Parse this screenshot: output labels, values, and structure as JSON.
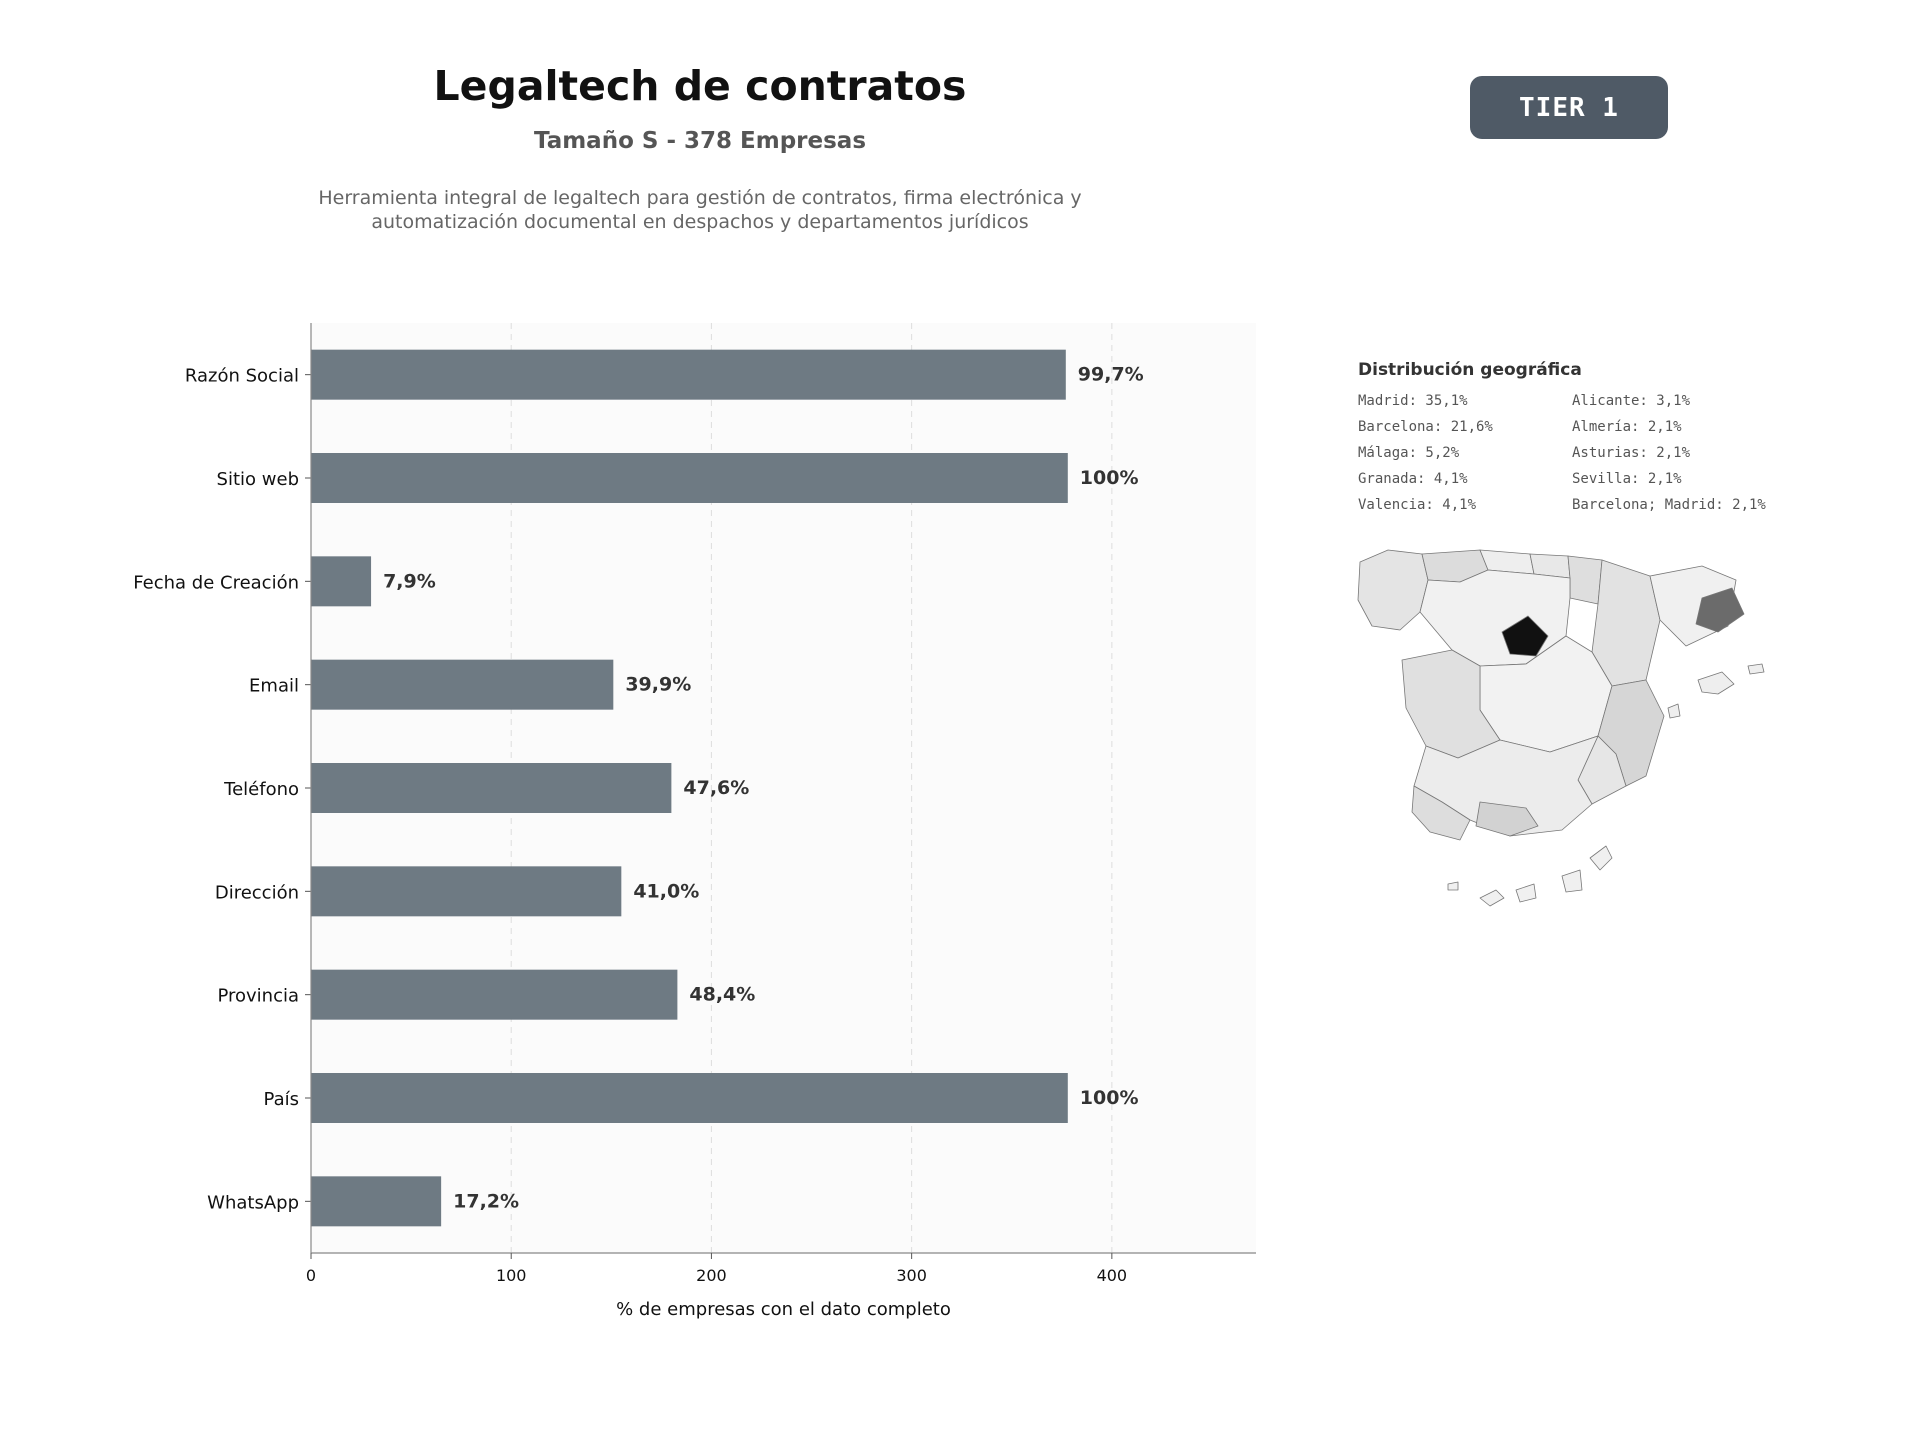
{
  "header": {
    "title": "Legaltech de contratos",
    "subtitle": "Tamaño S - 378 Empresas",
    "description": "Herramienta integral de legaltech para gestión de contratos, firma electrónica y automatización documental en despachos y departamentos jurídicos",
    "tier": "TIER 1"
  },
  "geo": {
    "title": "Distribución geográfica",
    "items": [
      "Madrid: 35,1%",
      "Alicante: 3,1%",
      "Barcelona: 21,6%",
      "Almería: 2,1%",
      "Málaga: 5,2%",
      "Asturias: 2,1%",
      "Granada: 4,1%",
      "Sevilla: 2,1%",
      "Valencia: 4,1%",
      "Barcelona; Madrid: 2,1%"
    ]
  },
  "colors": {
    "bar": "#6e7a83",
    "badge": "#4f5a66",
    "madrid": "#111111",
    "barcelona": "#6b6b6b"
  },
  "chart_data": {
    "type": "bar",
    "orientation": "horizontal",
    "categories": [
      "Razón Social",
      "Sitio web",
      "Fecha de Creación",
      "Email",
      "Teléfono",
      "Dirección",
      "Provincia",
      "País",
      "WhatsApp"
    ],
    "values": [
      377,
      378,
      30,
      151,
      180,
      155,
      183,
      378,
      65
    ],
    "data_labels": [
      "99,7%",
      "100%",
      "7,9%",
      "39,9%",
      "47,6%",
      "41,0%",
      "48,4%",
      "100%",
      "17,2%"
    ],
    "xlabel": "% de empresas con el dato completo",
    "ylabel": "",
    "xlim": [
      0,
      472
    ],
    "xticks": [
      0,
      100,
      200,
      300,
      400
    ],
    "grid": "vertical dashed"
  }
}
